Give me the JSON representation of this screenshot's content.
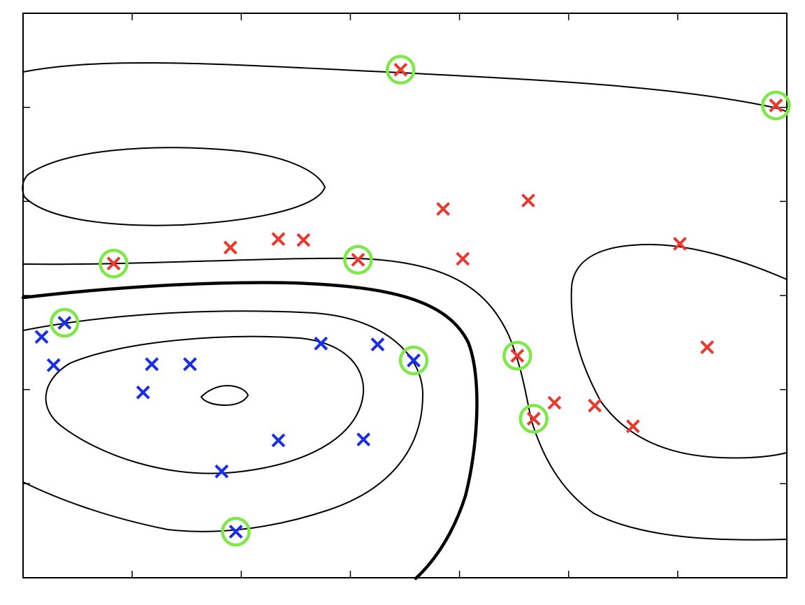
{
  "chart_data": {
    "type": "scatter",
    "title": "",
    "xlabel": "",
    "ylabel": "",
    "xlim": [
      0,
      7
    ],
    "ylim": [
      0,
      6
    ],
    "xticks": [
      1,
      2,
      3,
      4,
      5,
      6
    ],
    "yticks": [
      1,
      2,
      3,
      4,
      5
    ],
    "grid": false,
    "marker": "x",
    "colors": {
      "class_positive": "#e8392f",
      "class_negative": "#1a2ee6",
      "support_vector_ring": "#7ee84a",
      "contour": "#000000",
      "background": "#ffffff"
    },
    "series": [
      {
        "class": "positive",
        "color": "#e8392f",
        "points": [
          {
            "x": 3.46,
            "y": 5.4,
            "sv": true
          },
          {
            "x": 6.9,
            "y": 5.02,
            "sv": true
          },
          {
            "x": 3.85,
            "y": 3.92,
            "sv": false
          },
          {
            "x": 4.63,
            "y": 4.01,
            "sv": false
          },
          {
            "x": 1.9,
            "y": 3.51,
            "sv": false
          },
          {
            "x": 2.34,
            "y": 3.6,
            "sv": false
          },
          {
            "x": 2.57,
            "y": 3.59,
            "sv": false
          },
          {
            "x": 0.83,
            "y": 3.34,
            "sv": true
          },
          {
            "x": 3.07,
            "y": 3.38,
            "sv": true
          },
          {
            "x": 4.03,
            "y": 3.39,
            "sv": false
          },
          {
            "x": 6.02,
            "y": 3.55,
            "sv": false
          },
          {
            "x": 4.53,
            "y": 2.36,
            "sv": true
          },
          {
            "x": 6.27,
            "y": 2.45,
            "sv": false
          },
          {
            "x": 4.87,
            "y": 1.86,
            "sv": false
          },
          {
            "x": 5.24,
            "y": 1.83,
            "sv": false
          },
          {
            "x": 4.68,
            "y": 1.69,
            "sv": true
          },
          {
            "x": 5.59,
            "y": 1.61,
            "sv": false
          }
        ]
      },
      {
        "class": "negative",
        "color": "#1a2ee6",
        "points": [
          {
            "x": 0.38,
            "y": 2.71,
            "sv": true
          },
          {
            "x": 0.17,
            "y": 2.56,
            "sv": false
          },
          {
            "x": 2.73,
            "y": 2.49,
            "sv": false
          },
          {
            "x": 3.25,
            "y": 2.48,
            "sv": false
          },
          {
            "x": 3.58,
            "y": 2.31,
            "sv": true
          },
          {
            "x": 0.28,
            "y": 2.26,
            "sv": false
          },
          {
            "x": 1.18,
            "y": 2.27,
            "sv": false
          },
          {
            "x": 1.53,
            "y": 2.27,
            "sv": false
          },
          {
            "x": 1.1,
            "y": 1.97,
            "sv": false
          },
          {
            "x": 2.34,
            "y": 1.46,
            "sv": false
          },
          {
            "x": 3.12,
            "y": 1.47,
            "sv": false
          },
          {
            "x": 1.82,
            "y": 1.13,
            "sv": false
          },
          {
            "x": 1.95,
            "y": 0.49,
            "sv": true
          }
        ]
      }
    ]
  }
}
